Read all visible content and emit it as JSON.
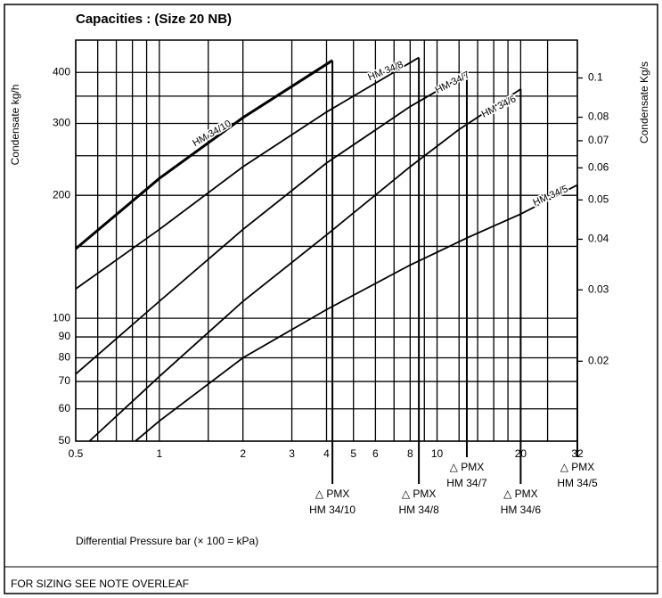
{
  "chart_data": {
    "type": "line",
    "title": "Capacities :  (Size 20 NB)",
    "y_label": "Condensate kg/h",
    "y2_label": "Condensate Kg/s",
    "x_label": "Differential Pressure bar (× 100 = kPa)",
    "footer": "FOR SIZING SEE NOTE OVERLEAF",
    "log_x": true,
    "log_y": true,
    "grid": true,
    "xlim": [
      0.5,
      32
    ],
    "xticks": [
      0.5,
      1,
      2,
      3,
      4,
      5,
      6,
      8,
      10,
      20,
      32
    ],
    "xgrid_minor": [
      0.6,
      0.7,
      0.8,
      0.9,
      1.5,
      7,
      9,
      12,
      14,
      16,
      18,
      25
    ],
    "ylim": [
      50,
      480
    ],
    "yticks": [
      50,
      60,
      70,
      80,
      90,
      100,
      200,
      300,
      400
    ],
    "ygrid_minor": [
      150,
      250,
      350
    ],
    "y2lim": [
      0.0127,
      0.124
    ],
    "y2ticks": [
      0.02,
      0.03,
      0.04,
      0.05,
      0.06,
      0.07,
      0.08,
      0.1
    ],
    "series": [
      {
        "name": "HM 34/10",
        "color": "#000000",
        "x": [
          0.5,
          1,
          2,
          4.2
        ],
        "values": [
          148,
          220,
          310,
          428
        ]
      },
      {
        "name": "HM 34/8",
        "color": "#000000",
        "x": [
          0.5,
          1,
          2,
          4,
          8.6
        ],
        "values": [
          118,
          165,
          235,
          320,
          435
        ]
      },
      {
        "name": "HM 34/7",
        "color": "#000000",
        "x": [
          0.5,
          1,
          2,
          4,
          8,
          12.8
        ],
        "values": [
          73,
          110,
          165,
          240,
          330,
          397
        ]
      },
      {
        "name": "HM 34/6",
        "color": "#000000",
        "x": [
          0.56,
          1,
          2,
          4,
          8,
          12,
          20
        ],
        "values": [
          50,
          72,
          110,
          160,
          235,
          290,
          364
        ]
      },
      {
        "name": "HM 34/5",
        "color": "#000000",
        "x": [
          0.82,
          1,
          2,
          4,
          8,
          13,
          20,
          32
        ],
        "values": [
          50,
          56,
          80,
          105,
          135,
          158,
          180,
          212
        ]
      }
    ],
    "pmx": [
      {
        "x": 4.2,
        "text": [
          "△ PMX",
          "HM 34/10"
        ]
      },
      {
        "x": 8.6,
        "text": [
          "△ PMX",
          "HM 34/8"
        ]
      },
      {
        "x": 12.8,
        "text": [
          "△ PMX",
          "HM 34/7"
        ]
      },
      {
        "x": 20,
        "text": [
          "△ PMX",
          "HM 34/6"
        ]
      },
      {
        "x": 32,
        "text": [
          "△ PMX",
          "HM 34/5"
        ]
      }
    ]
  }
}
